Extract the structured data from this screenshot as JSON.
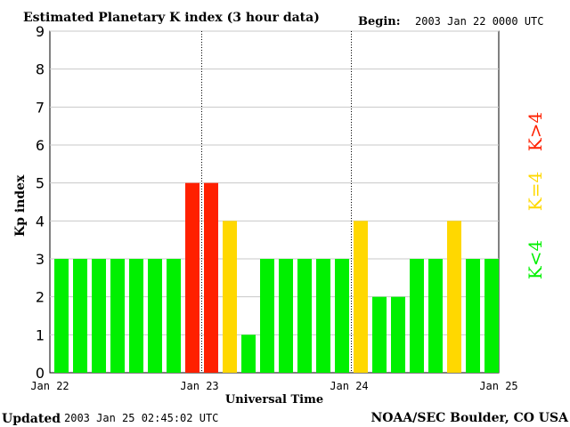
{
  "chart_data": {
    "type": "bar",
    "title": "Estimated Planetary K index (3 hour data)",
    "begin_label": "Begin:",
    "begin_value": "2003 Jan 22 0000 UTC",
    "xlabel": "Universal Time",
    "ylabel": "Kp index",
    "ylim": [
      0,
      9
    ],
    "yticks": [
      "0",
      "1",
      "2",
      "3",
      "4",
      "5",
      "6",
      "7",
      "8",
      "9"
    ],
    "xtick_labels": [
      "Jan 22",
      "Jan 23",
      "Jan 24",
      "Jan 25"
    ],
    "day_separators_after_bar": [
      8,
      16
    ],
    "values": [
      3,
      3,
      3,
      3,
      3,
      3,
      3,
      5,
      5,
      4,
      1,
      3,
      3,
      3,
      3,
      3,
      4,
      2,
      2,
      3,
      3,
      4,
      3,
      3
    ],
    "colors": {
      "green": "#00f000",
      "yellow": "#ffd800",
      "red": "#ff2000"
    },
    "legend": [
      {
        "label": "K<4",
        "color": "#00f000"
      },
      {
        "label": "K=4",
        "color": "#ffd800"
      },
      {
        "label": "K>4",
        "color": "#ff2000"
      }
    ],
    "updated_label": "Updated",
    "updated_value": "2003 Jan 25 02:45:02 UTC",
    "source": "NOAA/SEC Boulder, CO USA"
  }
}
